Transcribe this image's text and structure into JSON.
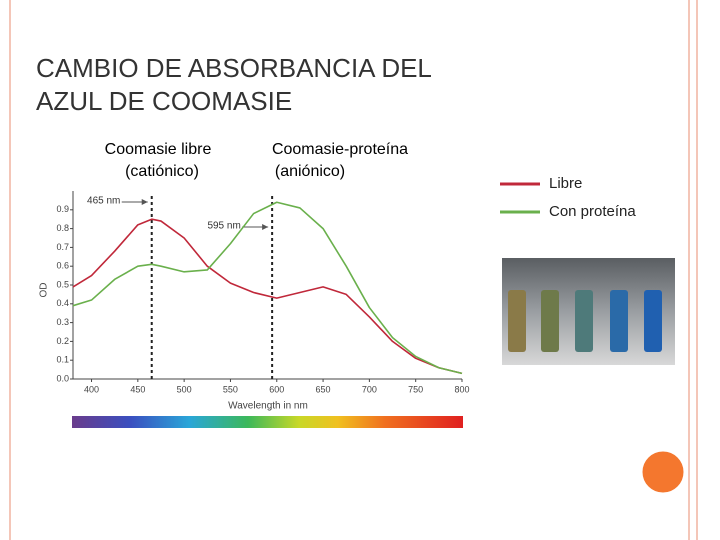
{
  "slide": {
    "title_lines": [
      "CAMBIO DE ABSORBANCIA  DEL",
      "AZUL DE COOMASIE"
    ],
    "headers": [
      [
        "Coomasie libre",
        "(catiónico)"
      ],
      [
        "Coomasie-proteína",
        "(aniónico)"
      ]
    ]
  },
  "chart_data": {
    "type": "line",
    "x_label": "Wavelength in nm",
    "y_label": "OD",
    "x": [
      380,
      400,
      425,
      450,
      465,
      475,
      500,
      525,
      550,
      575,
      600,
      625,
      650,
      675,
      700,
      725,
      750,
      775,
      800
    ],
    "series": [
      {
        "name": "Libre",
        "color": "#c0283a",
        "values": [
          0.49,
          0.55,
          0.68,
          0.82,
          0.85,
          0.84,
          0.75,
          0.6,
          0.51,
          0.46,
          0.43,
          0.46,
          0.49,
          0.45,
          0.33,
          0.2,
          0.11,
          0.06,
          0.03
        ]
      },
      {
        "name": "Con proteína",
        "color": "#6ab04c",
        "values": [
          0.39,
          0.42,
          0.53,
          0.6,
          0.61,
          0.6,
          0.57,
          0.58,
          0.72,
          0.88,
          0.94,
          0.91,
          0.8,
          0.6,
          0.38,
          0.22,
          0.12,
          0.06,
          0.03
        ]
      }
    ],
    "xlim": [
      380,
      800
    ],
    "xticks": [
      400,
      450,
      500,
      550,
      600,
      650,
      700,
      750,
      800
    ],
    "ylim": [
      0,
      1.0
    ],
    "yticks": [
      {
        "value": 0,
        "label": "0.0"
      },
      0.1,
      0.2,
      0.3,
      0.4,
      0.5,
      0.6,
      0.7,
      0.8,
      0.9
    ],
    "annotations": [
      {
        "x": 465,
        "label": "465 nm"
      },
      {
        "x": 595,
        "label": "595 nm"
      }
    ]
  }
}
